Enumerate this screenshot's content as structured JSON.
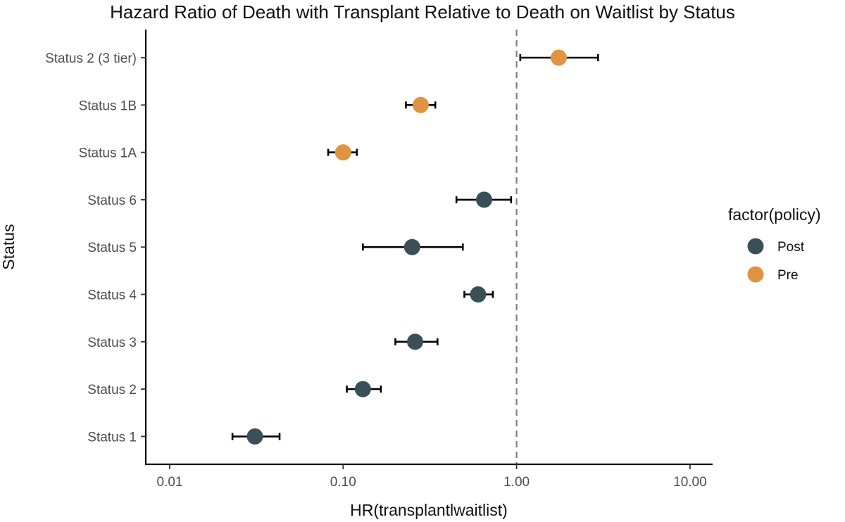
{
  "chart_data": {
    "type": "scatter",
    "title": "Hazard Ratio of Death with Transplant Relative to Death on Waitlist by Status",
    "xlabel": "HR(transplantlwaitlist)",
    "ylabel": "Status",
    "x_scale": "log10",
    "xlim": [
      0.0058,
      15.5
    ],
    "x_ticks": [
      0.01,
      0.1,
      1,
      10
    ],
    "x_tick_labels": [
      "0.01",
      "0.10",
      "1.00",
      "10.00"
    ],
    "reference_line": {
      "x": 1,
      "style": "dashed",
      "color": "#808080"
    },
    "grid": false,
    "categories": [
      "Status 2 (3 tier)",
      "Status 1B",
      "Status 1A",
      "Status 6",
      "Status 5",
      "Status 4",
      "Status 3",
      "Status 2",
      "Status 1"
    ],
    "legend": {
      "title": "factor(policy)",
      "placement": "right",
      "entries": [
        {
          "name": "Post",
          "color": "#3a4f57"
        },
        {
          "name": "Pre",
          "color": "#e09340"
        }
      ]
    },
    "points": [
      {
        "category": "Status 2 (3 tier)",
        "policy": "Pre",
        "hr": 1.75,
        "lower": 1.05,
        "upper": 2.95
      },
      {
        "category": "Status 1B",
        "policy": "Pre",
        "hr": 0.28,
        "lower": 0.23,
        "upper": 0.34
      },
      {
        "category": "Status 1A",
        "policy": "Pre",
        "hr": 0.1,
        "lower": 0.082,
        "upper": 0.12
      },
      {
        "category": "Status 6",
        "policy": "Post",
        "hr": 0.65,
        "lower": 0.45,
        "upper": 0.93
      },
      {
        "category": "Status 5",
        "policy": "Post",
        "hr": 0.25,
        "lower": 0.13,
        "upper": 0.49
      },
      {
        "category": "Status 4",
        "policy": "Post",
        "hr": 0.6,
        "lower": 0.5,
        "upper": 0.73
      },
      {
        "category": "Status 3",
        "policy": "Post",
        "hr": 0.26,
        "lower": 0.2,
        "upper": 0.35
      },
      {
        "category": "Status 2",
        "policy": "Post",
        "hr": 0.13,
        "lower": 0.105,
        "upper": 0.165
      },
      {
        "category": "Status 1",
        "policy": "Post",
        "hr": 0.031,
        "lower": 0.023,
        "upper": 0.043
      }
    ]
  }
}
